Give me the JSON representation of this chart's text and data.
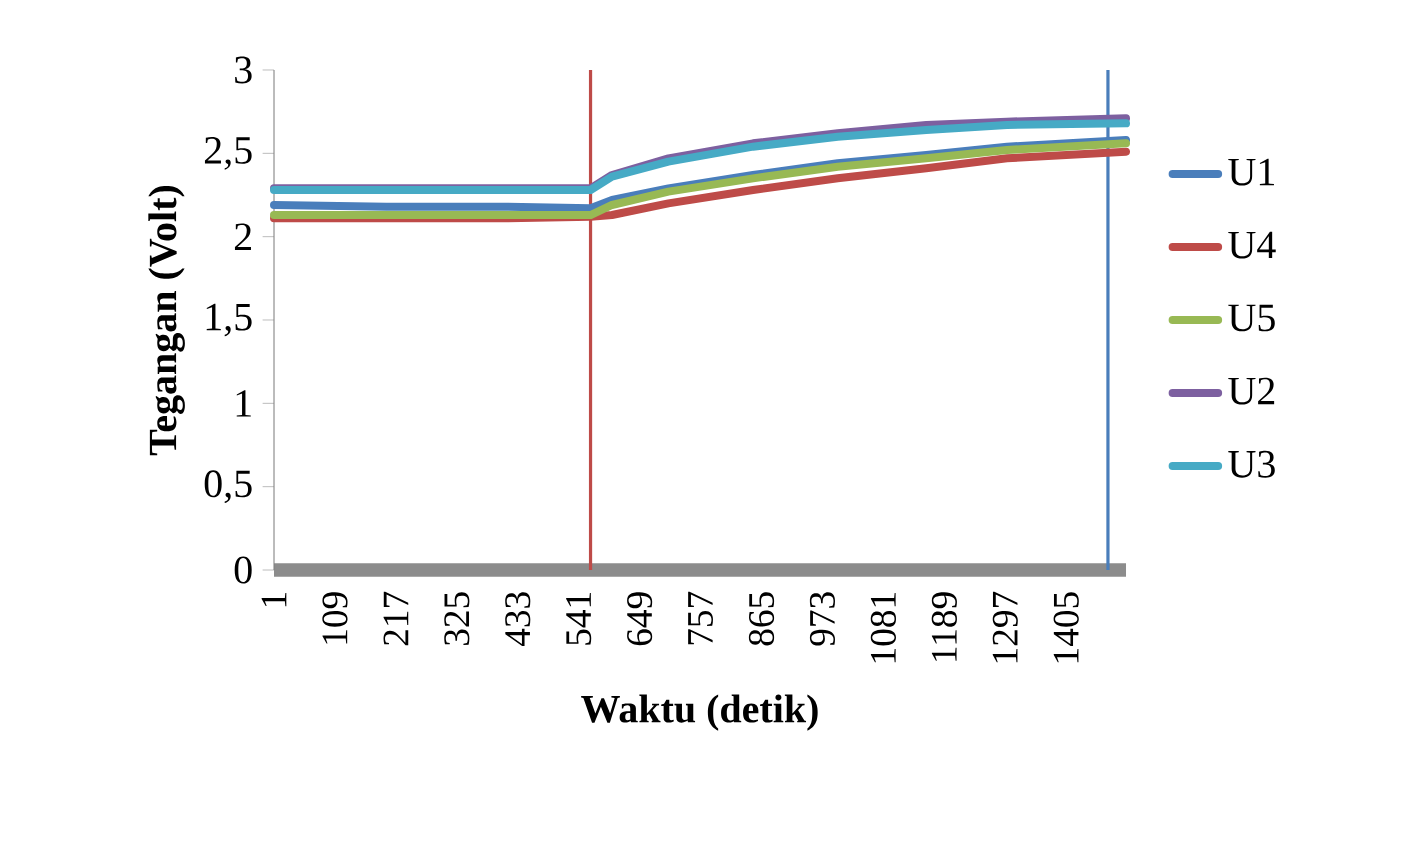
{
  "chart_data": {
    "type": "line",
    "xlabel": "Waktu (detik)",
    "ylabel": "Tegangan (Volt)",
    "x": [
      1,
      200,
      400,
      562,
      600,
      700,
      850,
      1000,
      1157,
      1300,
      1511
    ],
    "series": [
      {
        "name": "U1",
        "color": "#4a7ebb",
        "values": [
          2.19,
          2.18,
          2.18,
          2.17,
          2.22,
          2.29,
          2.37,
          2.44,
          2.49,
          2.54,
          2.58
        ]
      },
      {
        "name": "U4",
        "color": "#be4b48",
        "values": [
          2.11,
          2.11,
          2.11,
          2.12,
          2.13,
          2.2,
          2.28,
          2.35,
          2.41,
          2.47,
          2.51
        ]
      },
      {
        "name": "U5",
        "color": "#98b954",
        "values": [
          2.13,
          2.13,
          2.13,
          2.13,
          2.19,
          2.27,
          2.35,
          2.42,
          2.47,
          2.52,
          2.56
        ]
      },
      {
        "name": "U2",
        "color": "#7d60a0",
        "values": [
          2.29,
          2.29,
          2.29,
          2.29,
          2.37,
          2.47,
          2.56,
          2.62,
          2.67,
          2.69,
          2.71
        ]
      },
      {
        "name": "U3",
        "color": "#46aac5",
        "values": [
          2.28,
          2.28,
          2.28,
          2.28,
          2.36,
          2.45,
          2.54,
          2.6,
          2.64,
          2.67,
          2.68
        ]
      }
    ],
    "xlim": [
      1,
      1511
    ],
    "ylim": [
      0,
      3
    ],
    "xticks": [
      1,
      109,
      217,
      325,
      433,
      541,
      649,
      757,
      865,
      973,
      1081,
      1189,
      1297,
      1405
    ],
    "yticks": [
      0,
      {
        "value": 0.5,
        "label": "0,5"
      },
      1,
      {
        "value": 1.5,
        "label": "1,5"
      },
      2,
      {
        "value": 2.5,
        "label": "2,5"
      },
      3
    ],
    "ref_lines": [
      {
        "axis": "x",
        "value": 562,
        "color": "#be4b48"
      },
      {
        "axis": "x",
        "value": 1479,
        "color": "#4a7ebb"
      }
    ],
    "legend": "right",
    "grid": false,
    "marker": "none",
    "line_style": "solid"
  }
}
